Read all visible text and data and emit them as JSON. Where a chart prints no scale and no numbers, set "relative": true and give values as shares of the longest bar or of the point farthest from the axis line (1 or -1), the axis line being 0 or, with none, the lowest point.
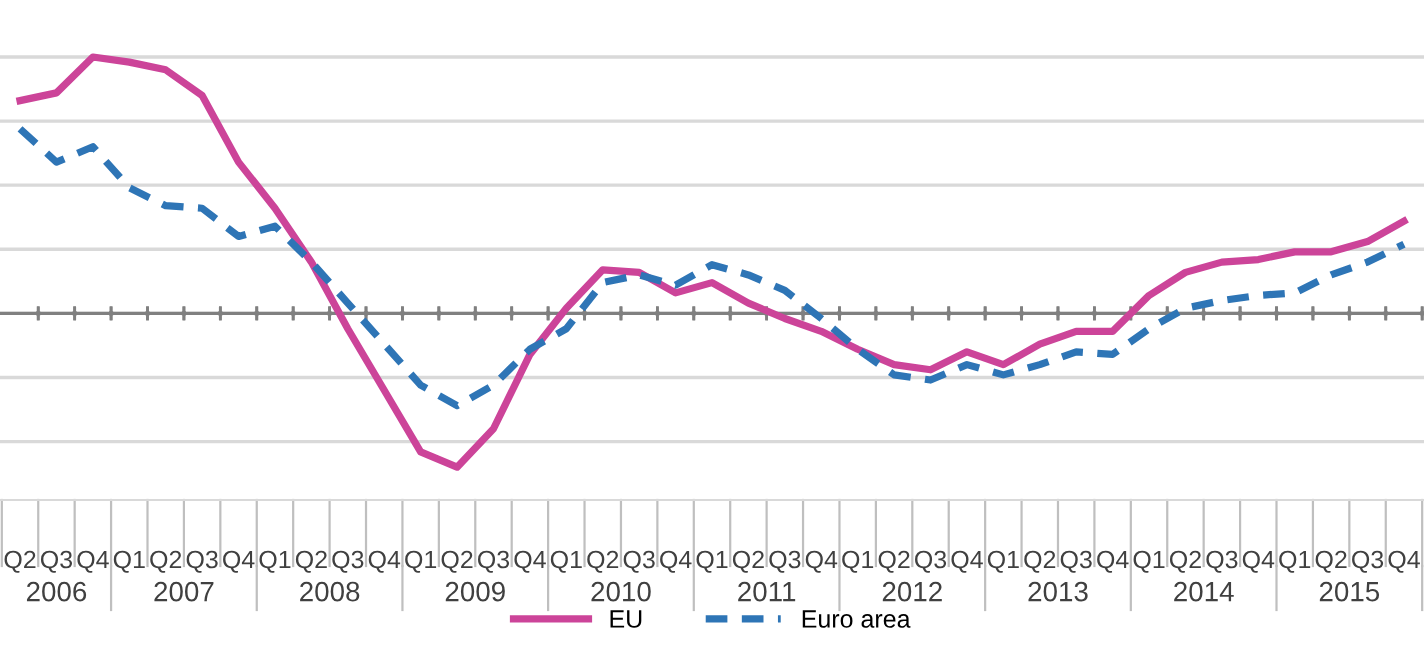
{
  "chart_data": {
    "type": "line",
    "relative": true,
    "grid": "y",
    "legend": "bottom",
    "tick_labels": "x",
    "categories": [
      "Q2",
      "Q3",
      "Q4",
      "Q1",
      "Q2",
      "Q3",
      "Q4",
      "Q1",
      "Q2",
      "Q3",
      "Q4",
      "Q1",
      "Q2",
      "Q3",
      "Q4",
      "Q1",
      "Q2",
      "Q3",
      "Q4",
      "Q1",
      "Q2",
      "Q3",
      "Q4",
      "Q1",
      "Q2",
      "Q3",
      "Q4",
      "Q1",
      "Q2",
      "Q3",
      "Q4",
      "Q1",
      "Q2",
      "Q3",
      "Q4",
      "Q1",
      "Q2",
      "Q3",
      "Q4"
    ],
    "annotations": [
      "2006",
      "2007",
      "2008",
      "2009",
      "2010",
      "2011",
      "2012",
      "2013",
      "2014",
      "2015"
    ],
    "series": [
      {
        "name": "EU",
        "color": "#cc4499",
        "line_style": "solid",
        "values": [
          0.83,
          0.86,
          1,
          0.98,
          0.95,
          0.85,
          0.59,
          0.41,
          0.2,
          -0.06,
          -0.3,
          -0.54,
          -0.6,
          -0.45,
          -0.16,
          0.02,
          0.17,
          0.16,
          0.08,
          0.12,
          0.04,
          -0.02,
          -0.07,
          -0.14,
          -0.2,
          -0.22,
          -0.15,
          -0.2,
          -0.12,
          -0.07,
          -0.07,
          0.07,
          0.16,
          0.2,
          0.21,
          0.24,
          0.24,
          0.28,
          0.36
        ]
      },
      {
        "name": "Euro area",
        "color": "#2e75b6",
        "line_style": "dashed",
        "values": [
          0.72,
          0.59,
          0.65,
          0.49,
          0.42,
          0.41,
          0.3,
          0.34,
          0.2,
          0.04,
          -0.12,
          -0.28,
          -0.36,
          -0.28,
          -0.14,
          -0.06,
          0.12,
          0.15,
          0.11,
          0.19,
          0.15,
          0.09,
          -0.02,
          -0.14,
          -0.24,
          -0.26,
          -0.2,
          -0.24,
          -0.2,
          -0.15,
          -0.16,
          -0.06,
          0.02,
          0.05,
          0.07,
          0.08,
          0.15,
          0.2,
          0.27
        ]
      }
    ]
  }
}
